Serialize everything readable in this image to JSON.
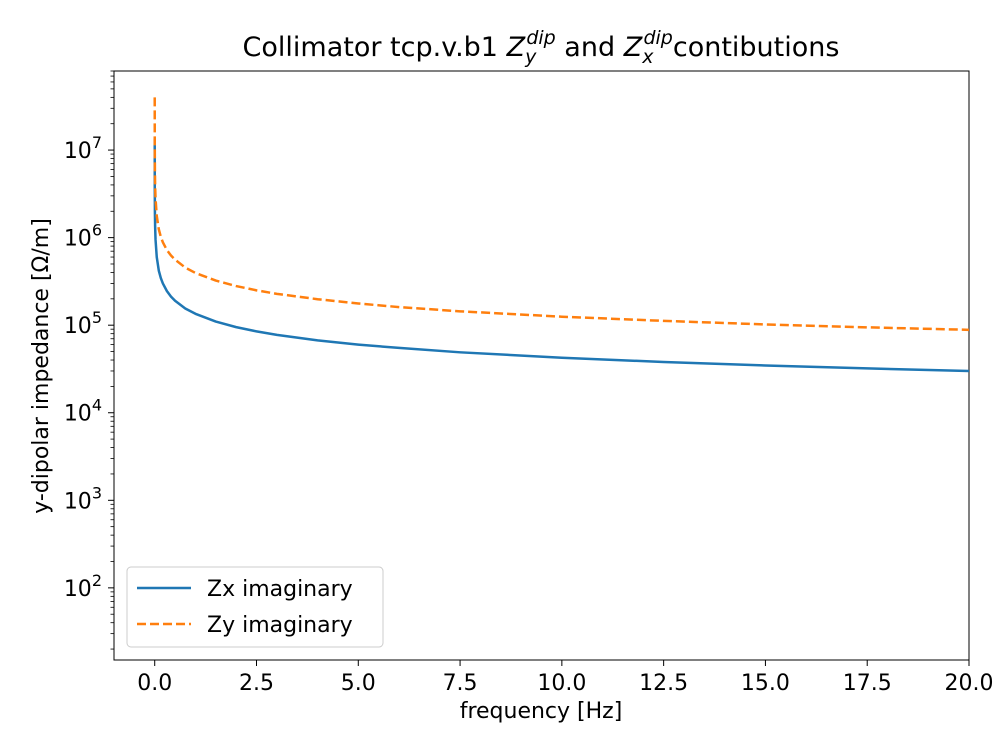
{
  "chart_data": {
    "type": "line",
    "title_parts": [
      {
        "text": "Collimator tcp.v.b1 ",
        "style": "normal"
      },
      {
        "text": "Z",
        "style": "italic"
      },
      {
        "text": "y",
        "style": "sub"
      },
      {
        "text": "dip",
        "style": "sup"
      },
      {
        "text": " and ",
        "style": "normal"
      },
      {
        "text": "Z",
        "style": "italic"
      },
      {
        "text": "x",
        "style": "sub"
      },
      {
        "text": "dip",
        "style": "sup"
      },
      {
        "text": "contibutions",
        "style": "normal"
      }
    ],
    "xlabel": "frequency [Hz]",
    "ylabel": "y-dipolar impedance [Ω/m]",
    "xscale": "linear",
    "yscale": "log",
    "xlim": [
      -1.0,
      20.0
    ],
    "ylim": [
      15,
      80000000
    ],
    "xticks": [
      {
        "value": 0.0,
        "label": "0.0"
      },
      {
        "value": 2.5,
        "label": "2.5"
      },
      {
        "value": 5.0,
        "label": "5.0"
      },
      {
        "value": 7.5,
        "label": "7.5"
      },
      {
        "value": 10.0,
        "label": "10.0"
      },
      {
        "value": 12.5,
        "label": "12.5"
      },
      {
        "value": 15.0,
        "label": "15.0"
      },
      {
        "value": 17.5,
        "label": "17.5"
      },
      {
        "value": 20.0,
        "label": "20.0"
      }
    ],
    "yticks": [
      {
        "value": 100,
        "base": "10",
        "exp": "2"
      },
      {
        "value": 1000,
        "base": "10",
        "exp": "3"
      },
      {
        "value": 10000,
        "base": "10",
        "exp": "4"
      },
      {
        "value": 100000,
        "base": "10",
        "exp": "5"
      },
      {
        "value": 1000000,
        "base": "10",
        "exp": "6"
      },
      {
        "value": 10000000,
        "base": "10",
        "exp": "7"
      }
    ],
    "grid": false,
    "legend_position": "lower-left",
    "series": [
      {
        "name": "Zx imaginary",
        "color": "#1f77b4",
        "dash": "solid",
        "x": [
          0.0001,
          0.001,
          0.005,
          0.01,
          0.02,
          0.05,
          0.1,
          0.15,
          0.2,
          0.3,
          0.4,
          0.5,
          0.75,
          1.0,
          1.5,
          2.0,
          2.5,
          3.0,
          4.0,
          5.0,
          6.0,
          7.5,
          10.0,
          12.5,
          15.0,
          17.5,
          20.0
        ],
        "y": [
          13500000,
          4200000,
          1900000,
          1350000,
          950000,
          600000,
          420000,
          345000,
          300000,
          245000,
          212000,
          190000,
          155000,
          135000,
          110000,
          95000,
          85000,
          77500,
          67000,
          60000,
          55000,
          49000,
          42500,
          38000,
          34700,
          32100,
          30000
        ]
      },
      {
        "name": "Zy imaginary",
        "color": "#ff7f0e",
        "dash": "dashed",
        "x": [
          0.0001,
          0.001,
          0.005,
          0.01,
          0.02,
          0.05,
          0.1,
          0.15,
          0.2,
          0.3,
          0.4,
          0.5,
          0.75,
          1.0,
          1.5,
          2.0,
          2.5,
          3.0,
          4.0,
          5.0,
          6.0,
          7.5,
          10.0,
          12.5,
          15.0,
          17.5,
          20.0
        ],
        "y": [
          40000000,
          12500000,
          5600000,
          3950000,
          2800000,
          1770000,
          1250000,
          1020000,
          885000,
          720000,
          625000,
          560000,
          455000,
          395000,
          323000,
          280000,
          250000,
          228000,
          198000,
          177000,
          161000,
          144000,
          125000,
          112000,
          102000,
          94500,
          88500
        ]
      }
    ]
  }
}
